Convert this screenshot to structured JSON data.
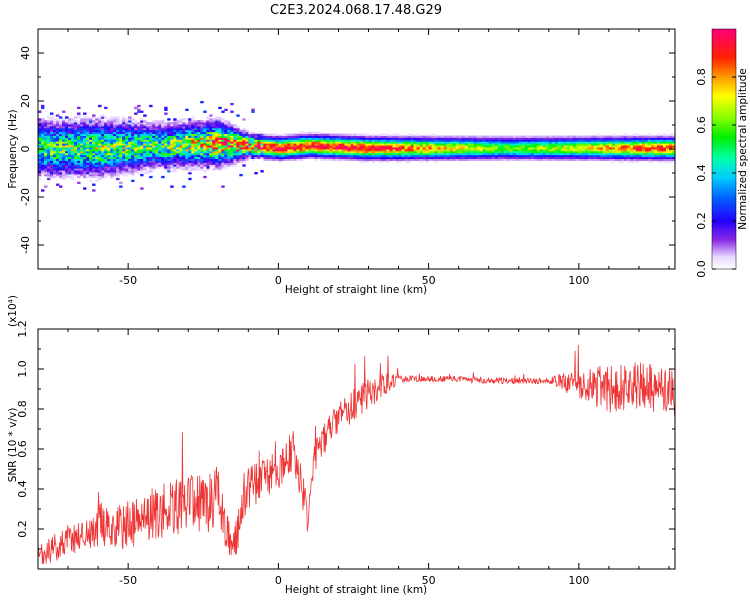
{
  "figure_title": "C2E3.2024.068.17.48.G29",
  "chart_data": [
    {
      "type": "heatmap",
      "title": "C2E3.2024.068.17.48.G29",
      "xlabel": "Height of straight line (km)",
      "ylabel": "Frequency (Hz)",
      "xlim": [
        -80,
        132
      ],
      "ylim": [
        -50,
        50
      ],
      "xticks": [
        -50,
        0,
        50,
        100
      ],
      "yticks": [
        -40,
        -20,
        0,
        20,
        40
      ],
      "colorbar": {
        "label": "Normalized spectral amplitude",
        "range": [
          0,
          1
        ],
        "ticks": [
          0.0,
          0.2,
          0.4,
          0.6,
          0.8
        ],
        "colormap": "rainbow (white-violet-blue-cyan-green-yellow-red-magenta)"
      },
      "description_points": [
        {
          "x": -75,
          "center_hz": 0,
          "halfwidth_hz": 5,
          "peak": 0.55
        },
        {
          "x": -60,
          "center_hz": 0,
          "halfwidth_hz": 5,
          "peak": 0.6
        },
        {
          "x": -40,
          "center_hz": 1,
          "halfwidth_hz": 4,
          "peak": 0.55
        },
        {
          "x": -20,
          "center_hz": 2,
          "halfwidth_hz": 4,
          "peak": 0.8
        },
        {
          "x": -10,
          "center_hz": 1,
          "halfwidth_hz": 2,
          "peak": 0.9
        },
        {
          "x": 0,
          "center_hz": 0,
          "halfwidth_hz": 2,
          "peak": 0.95
        },
        {
          "x": 10,
          "center_hz": 1,
          "halfwidth_hz": 2,
          "peak": 0.95
        },
        {
          "x": 30,
          "center_hz": 0,
          "halfwidth_hz": 2,
          "peak": 0.95
        },
        {
          "x": 50,
          "center_hz": 0,
          "halfwidth_hz": 2,
          "peak": 0.8
        },
        {
          "x": 75,
          "center_hz": 0,
          "halfwidth_hz": 2,
          "peak": 0.6
        },
        {
          "x": 100,
          "center_hz": 0,
          "halfwidth_hz": 2,
          "peak": 0.7
        },
        {
          "x": 120,
          "center_hz": 0,
          "halfwidth_hz": 2,
          "peak": 0.9
        }
      ]
    },
    {
      "type": "line",
      "xlabel": "Height of straight line (km)",
      "ylabel": "SNR (10 * v/v)",
      "yscale_label": "(x10⁴)",
      "xlim": [
        -80,
        132
      ],
      "ylim": [
        0,
        1.2
      ],
      "xticks": [
        -50,
        0,
        50,
        100
      ],
      "yticks": [
        0.2,
        0.4,
        0.6,
        0.8,
        1.0,
        1.2
      ],
      "series": [
        {
          "color": "#ee3333",
          "x": [
            -80,
            -70,
            -60,
            -50,
            -40,
            -30,
            -20,
            -15,
            -10,
            -5,
            0,
            5,
            10,
            12,
            15,
            20,
            25,
            30,
            35,
            40,
            50,
            60,
            70,
            80,
            90,
            100,
            110,
            120,
            132
          ],
          "y": [
            0.05,
            0.15,
            0.2,
            0.22,
            0.28,
            0.32,
            0.35,
            0.1,
            0.4,
            0.45,
            0.5,
            0.6,
            0.25,
            0.55,
            0.65,
            0.75,
            0.82,
            0.88,
            0.92,
            0.95,
            0.95,
            0.95,
            0.94,
            0.94,
            0.94,
            0.93,
            0.9,
            0.92,
            0.88
          ],
          "amplitude": [
            0.06,
            0.08,
            0.1,
            0.12,
            0.14,
            0.15,
            0.16,
            0.08,
            0.12,
            0.1,
            0.1,
            0.1,
            0.1,
            0.08,
            0.08,
            0.08,
            0.08,
            0.08,
            0.06,
            0.02,
            0.015,
            0.015,
            0.015,
            0.015,
            0.015,
            0.08,
            0.12,
            0.12,
            0.12
          ]
        }
      ]
    }
  ]
}
